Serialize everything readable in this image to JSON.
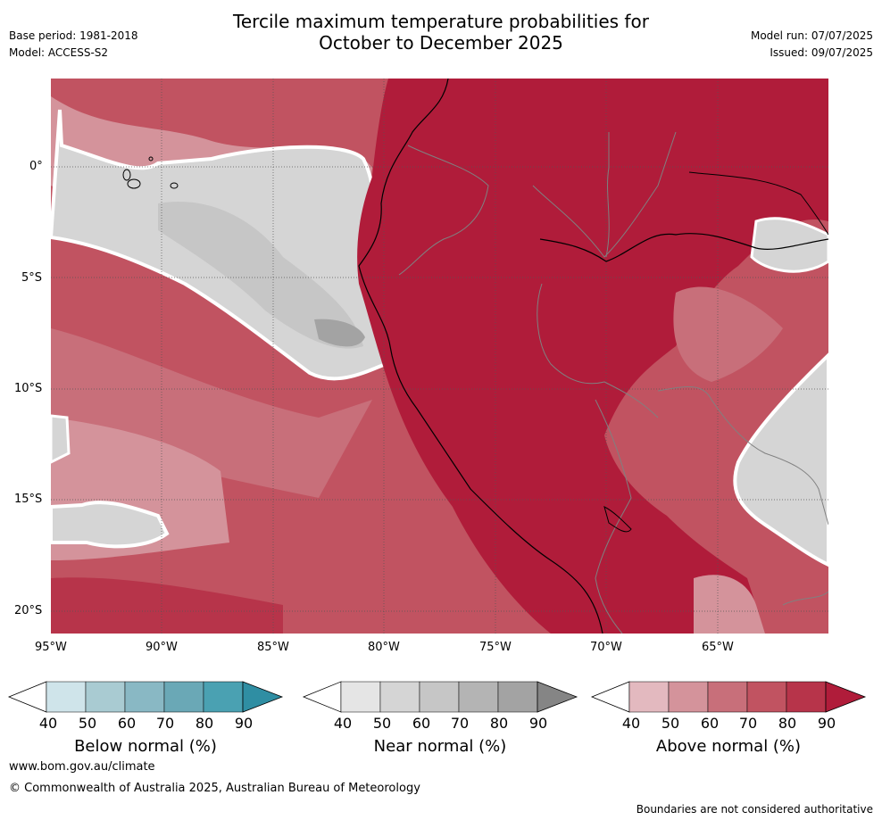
{
  "header": {
    "title_line1": "Tercile maximum temperature probabilities for",
    "title_line2": "October to December 2025",
    "base_period": "Base period: 1981-2018",
    "model": "Model: ACCESS-S2",
    "model_run": "Model run: 07/07/2025",
    "issued": "Issued: 09/07/2025"
  },
  "map": {
    "lat_labels": [
      "0°",
      "5°S",
      "10°S",
      "15°S",
      "20°S"
    ],
    "lon_labels": [
      "95°W",
      "90°W",
      "85°W",
      "80°W",
      "75°W",
      "70°W",
      "65°W"
    ]
  },
  "colorbars": [
    {
      "title": "Below normal (%)",
      "ticks": [
        "40",
        "50",
        "60",
        "70",
        "80",
        "90"
      ],
      "colors": [
        "#ffffff",
        "#cfe4ea",
        "#a9cbd2",
        "#89b8c4",
        "#6aa8b6",
        "#4aa1b2",
        "#2f8ea3"
      ]
    },
    {
      "title": "Near normal (%)",
      "ticks": [
        "40",
        "50",
        "60",
        "70",
        "80",
        "90"
      ],
      "colors": [
        "#ffffff",
        "#e5e5e5",
        "#d5d5d5",
        "#c6c6c6",
        "#b4b4b4",
        "#a3a3a3",
        "#858585"
      ]
    },
    {
      "title": "Above normal (%)",
      "ticks": [
        "40",
        "50",
        "60",
        "70",
        "80",
        "90"
      ],
      "colors": [
        "#ffffff",
        "#e3b9bf",
        "#d4939b",
        "#c86f7a",
        "#c15361",
        "#b7344a",
        "#b01c3a"
      ]
    }
  ],
  "footer": {
    "url": "www.bom.gov.au/climate",
    "copyright": "© Commonwealth of Australia 2025, Australian Bureau of Meteorology",
    "disclaimer": "Boundaries are not considered authoritative"
  }
}
